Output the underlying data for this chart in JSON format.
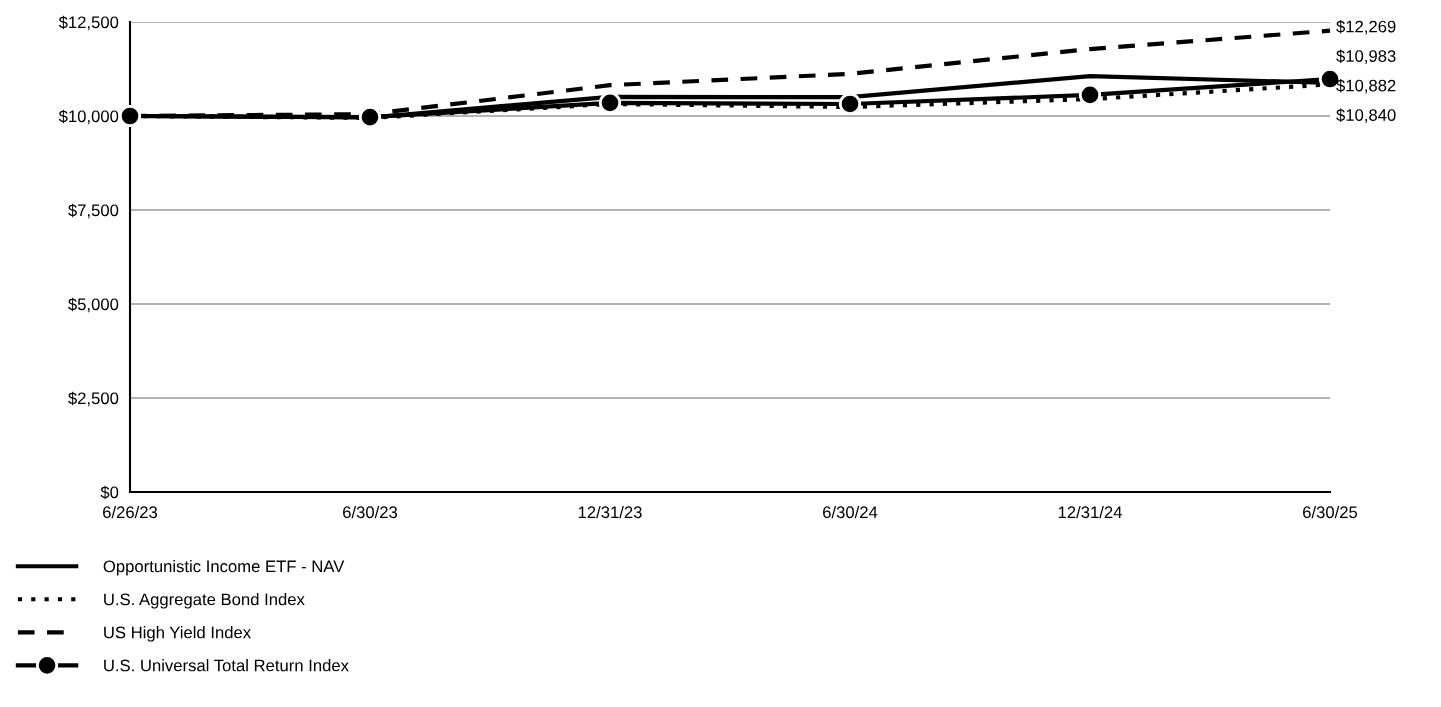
{
  "chart_data": {
    "type": "line",
    "categories": [
      "6/26/23",
      "6/30/23",
      "12/31/23",
      "6/30/24",
      "12/31/24",
      "6/30/25"
    ],
    "series": [
      {
        "name": "Opportunistic Income ETF - NAV",
        "color": "#000000",
        "line_style": "solid",
        "marker": "none",
        "values": [
          10000,
          9960,
          10510,
          10500,
          11060,
          10882
        ]
      },
      {
        "name": "U.S. Aggregate Bond Index",
        "color": "#000000",
        "line_style": "dotted",
        "marker": "none",
        "values": [
          10000,
          9950,
          10320,
          10240,
          10450,
          10840
        ]
      },
      {
        "name": "US High Yield Index",
        "color": "#000000",
        "line_style": "dashed",
        "marker": "none",
        "values": [
          10000,
          10050,
          10820,
          11120,
          11780,
          12269
        ]
      },
      {
        "name": "U.S. Universal Total Return Index",
        "color": "#000000",
        "line_style": "solid",
        "marker": "circle",
        "values": [
          10000,
          9970,
          10350,
          10320,
          10560,
          10983
        ]
      }
    ],
    "ylim": [
      0,
      12500
    ],
    "yticks": [
      {
        "value": 0,
        "label": "$0"
      },
      {
        "value": 2500,
        "label": "$2,500"
      },
      {
        "value": 5000,
        "label": "$5,000"
      },
      {
        "value": 7500,
        "label": "$7,500"
      },
      {
        "value": 10000,
        "label": "$10,000"
      },
      {
        "value": 12500,
        "label": "$12,500"
      }
    ],
    "grid": "y",
    "legend": "bottom",
    "annotations": [
      "$12,269",
      "$10,983",
      "$10,882",
      "$10,840"
    ]
  }
}
